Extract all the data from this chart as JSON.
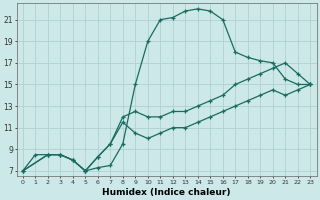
{
  "xlabel": "Humidex (Indice chaleur)",
  "xlim": [
    -0.5,
    23.5
  ],
  "ylim": [
    6.5,
    22.5
  ],
  "yticks": [
    7,
    9,
    11,
    13,
    15,
    17,
    19,
    21
  ],
  "xticks": [
    0,
    1,
    2,
    3,
    4,
    5,
    6,
    7,
    8,
    9,
    10,
    11,
    12,
    13,
    14,
    15,
    16,
    17,
    18,
    19,
    20,
    21,
    22,
    23
  ],
  "bg_color": "#cce8e8",
  "grid_color": "#b0d0d0",
  "line_color": "#1a6b60",
  "line1_x": [
    0,
    1,
    2,
    3,
    4,
    5,
    6,
    7,
    8,
    9,
    10,
    11,
    12,
    13,
    14,
    15,
    16,
    17,
    18,
    19,
    20,
    21,
    22,
    23
  ],
  "line1_y": [
    7,
    8.5,
    8.5,
    8.5,
    8,
    7,
    7.3,
    7.5,
    9.5,
    15,
    19,
    21,
    21.2,
    21.8,
    22,
    21.8,
    21,
    18,
    17.5,
    17.2,
    17,
    15.5,
    15,
    15
  ],
  "line2_x": [
    0,
    2,
    3,
    4,
    5,
    6,
    7,
    8,
    9,
    10,
    11,
    12,
    13,
    14,
    15,
    16,
    17,
    18,
    19,
    20,
    21,
    22,
    23
  ],
  "line2_y": [
    7,
    8.5,
    8.5,
    8,
    7,
    8.3,
    9.5,
    12,
    12.5,
    12,
    12,
    12.5,
    12.5,
    13,
    13.5,
    14,
    15,
    15.5,
    16,
    16.5,
    17,
    16,
    15
  ],
  "line3_x": [
    0,
    2,
    3,
    4,
    5,
    6,
    7,
    8,
    9,
    10,
    11,
    12,
    13,
    14,
    15,
    16,
    17,
    18,
    19,
    20,
    21,
    22,
    23
  ],
  "line3_y": [
    7,
    8.5,
    8.5,
    8,
    7,
    8.3,
    9.5,
    11.5,
    10.5,
    10,
    10.5,
    11,
    11,
    11.5,
    12,
    12.5,
    13,
    13.5,
    14,
    14.5,
    14,
    14.5,
    15
  ]
}
